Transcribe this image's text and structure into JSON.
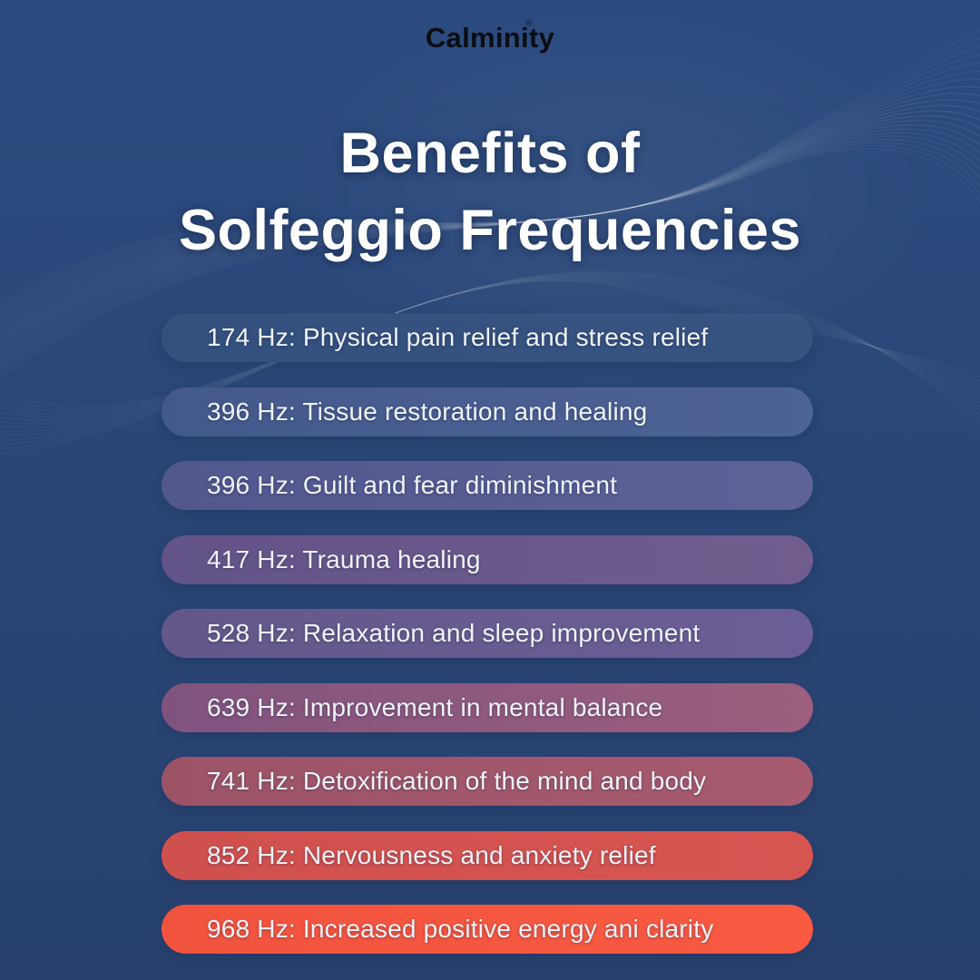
{
  "poster": {
    "background_top": "#2b4b7f",
    "background_bottom": "#28416f",
    "wave_color": "#ffffff"
  },
  "logo": {
    "text": "Calminity",
    "mark": "®",
    "color": "#0b0d12"
  },
  "title": {
    "line1": "Benefits of",
    "line2": "Solfeggio Frequencies",
    "color": "#ffffff"
  },
  "list": {
    "text_color": "#f0f3f9",
    "items": [
      {
        "label": "174 Hz: Physical pain relief and stress relief",
        "color_from": "#33507e",
        "color_to": "#375381"
      },
      {
        "label": "396 Hz: Tissue restoration and healing",
        "color_from": "#44598b",
        "color_to": "#4d6296"
      },
      {
        "label": "396 Hz: Guilt and fear diminishment",
        "color_from": "#52578e",
        "color_to": "#5d6299"
      },
      {
        "label": "417 Hz: Trauma healing",
        "color_from": "#625388",
        "color_to": "#705d8e"
      },
      {
        "label": "528 Hz: Relaxation and sleep improvement",
        "color_from": "#645889",
        "color_to": "#6b5e96"
      },
      {
        "label": "639 Hz: Improvement in mental balance",
        "color_from": "#80537f",
        "color_to": "#9d5f7d"
      },
      {
        "label": "741 Hz: Detoxification of the mind and body",
        "color_from": "#9b5366",
        "color_to": "#a85b6f"
      },
      {
        "label": "852 Hz: Nervousness and anxiety relief",
        "color_from": "#d0504e",
        "color_to": "#d75551"
      },
      {
        "label": "968 Hz: Increased positive energy ani clarity",
        "color_from": "#f2533e",
        "color_to": "#f85a42"
      }
    ]
  }
}
